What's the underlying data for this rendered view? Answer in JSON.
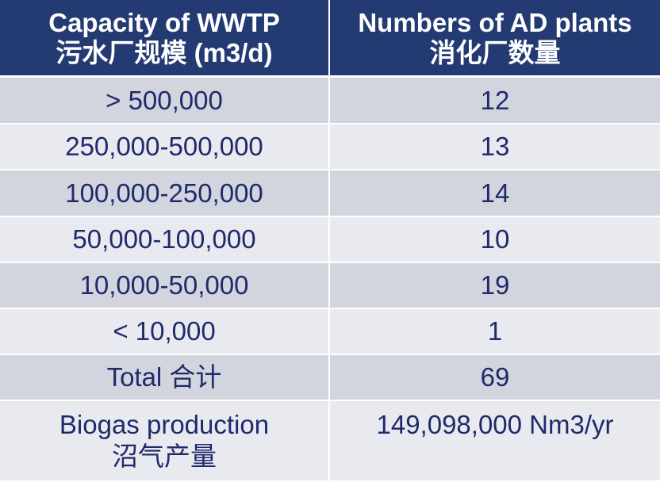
{
  "header": {
    "col1_line1": "Capacity of WWTP",
    "col1_line2": "污水厂规模 (m3/d)",
    "col2_line1": "Numbers of AD plants",
    "col2_line2": "消化厂数量"
  },
  "rows": [
    {
      "capacity": "> 500,000",
      "count": "12"
    },
    {
      "capacity": "250,000-500,000",
      "count": "13"
    },
    {
      "capacity": "100,000-250,000",
      "count": "14"
    },
    {
      "capacity": "50,000-100,000",
      "count": "10"
    },
    {
      "capacity": "10,000-50,000",
      "count": "19"
    },
    {
      "capacity": "< 10,000",
      "count": "1"
    },
    {
      "capacity": "Total 合计",
      "count": "69"
    }
  ],
  "biogas": {
    "label_line1": "Biogas production",
    "label_line2": "沼气产量",
    "value": "149,098,000 Nm3/yr"
  },
  "colors": {
    "header_bg": "#233a72",
    "row_dark": "#d2d5de",
    "row_light": "#e9eaef",
    "text": "#1f2a6b"
  }
}
